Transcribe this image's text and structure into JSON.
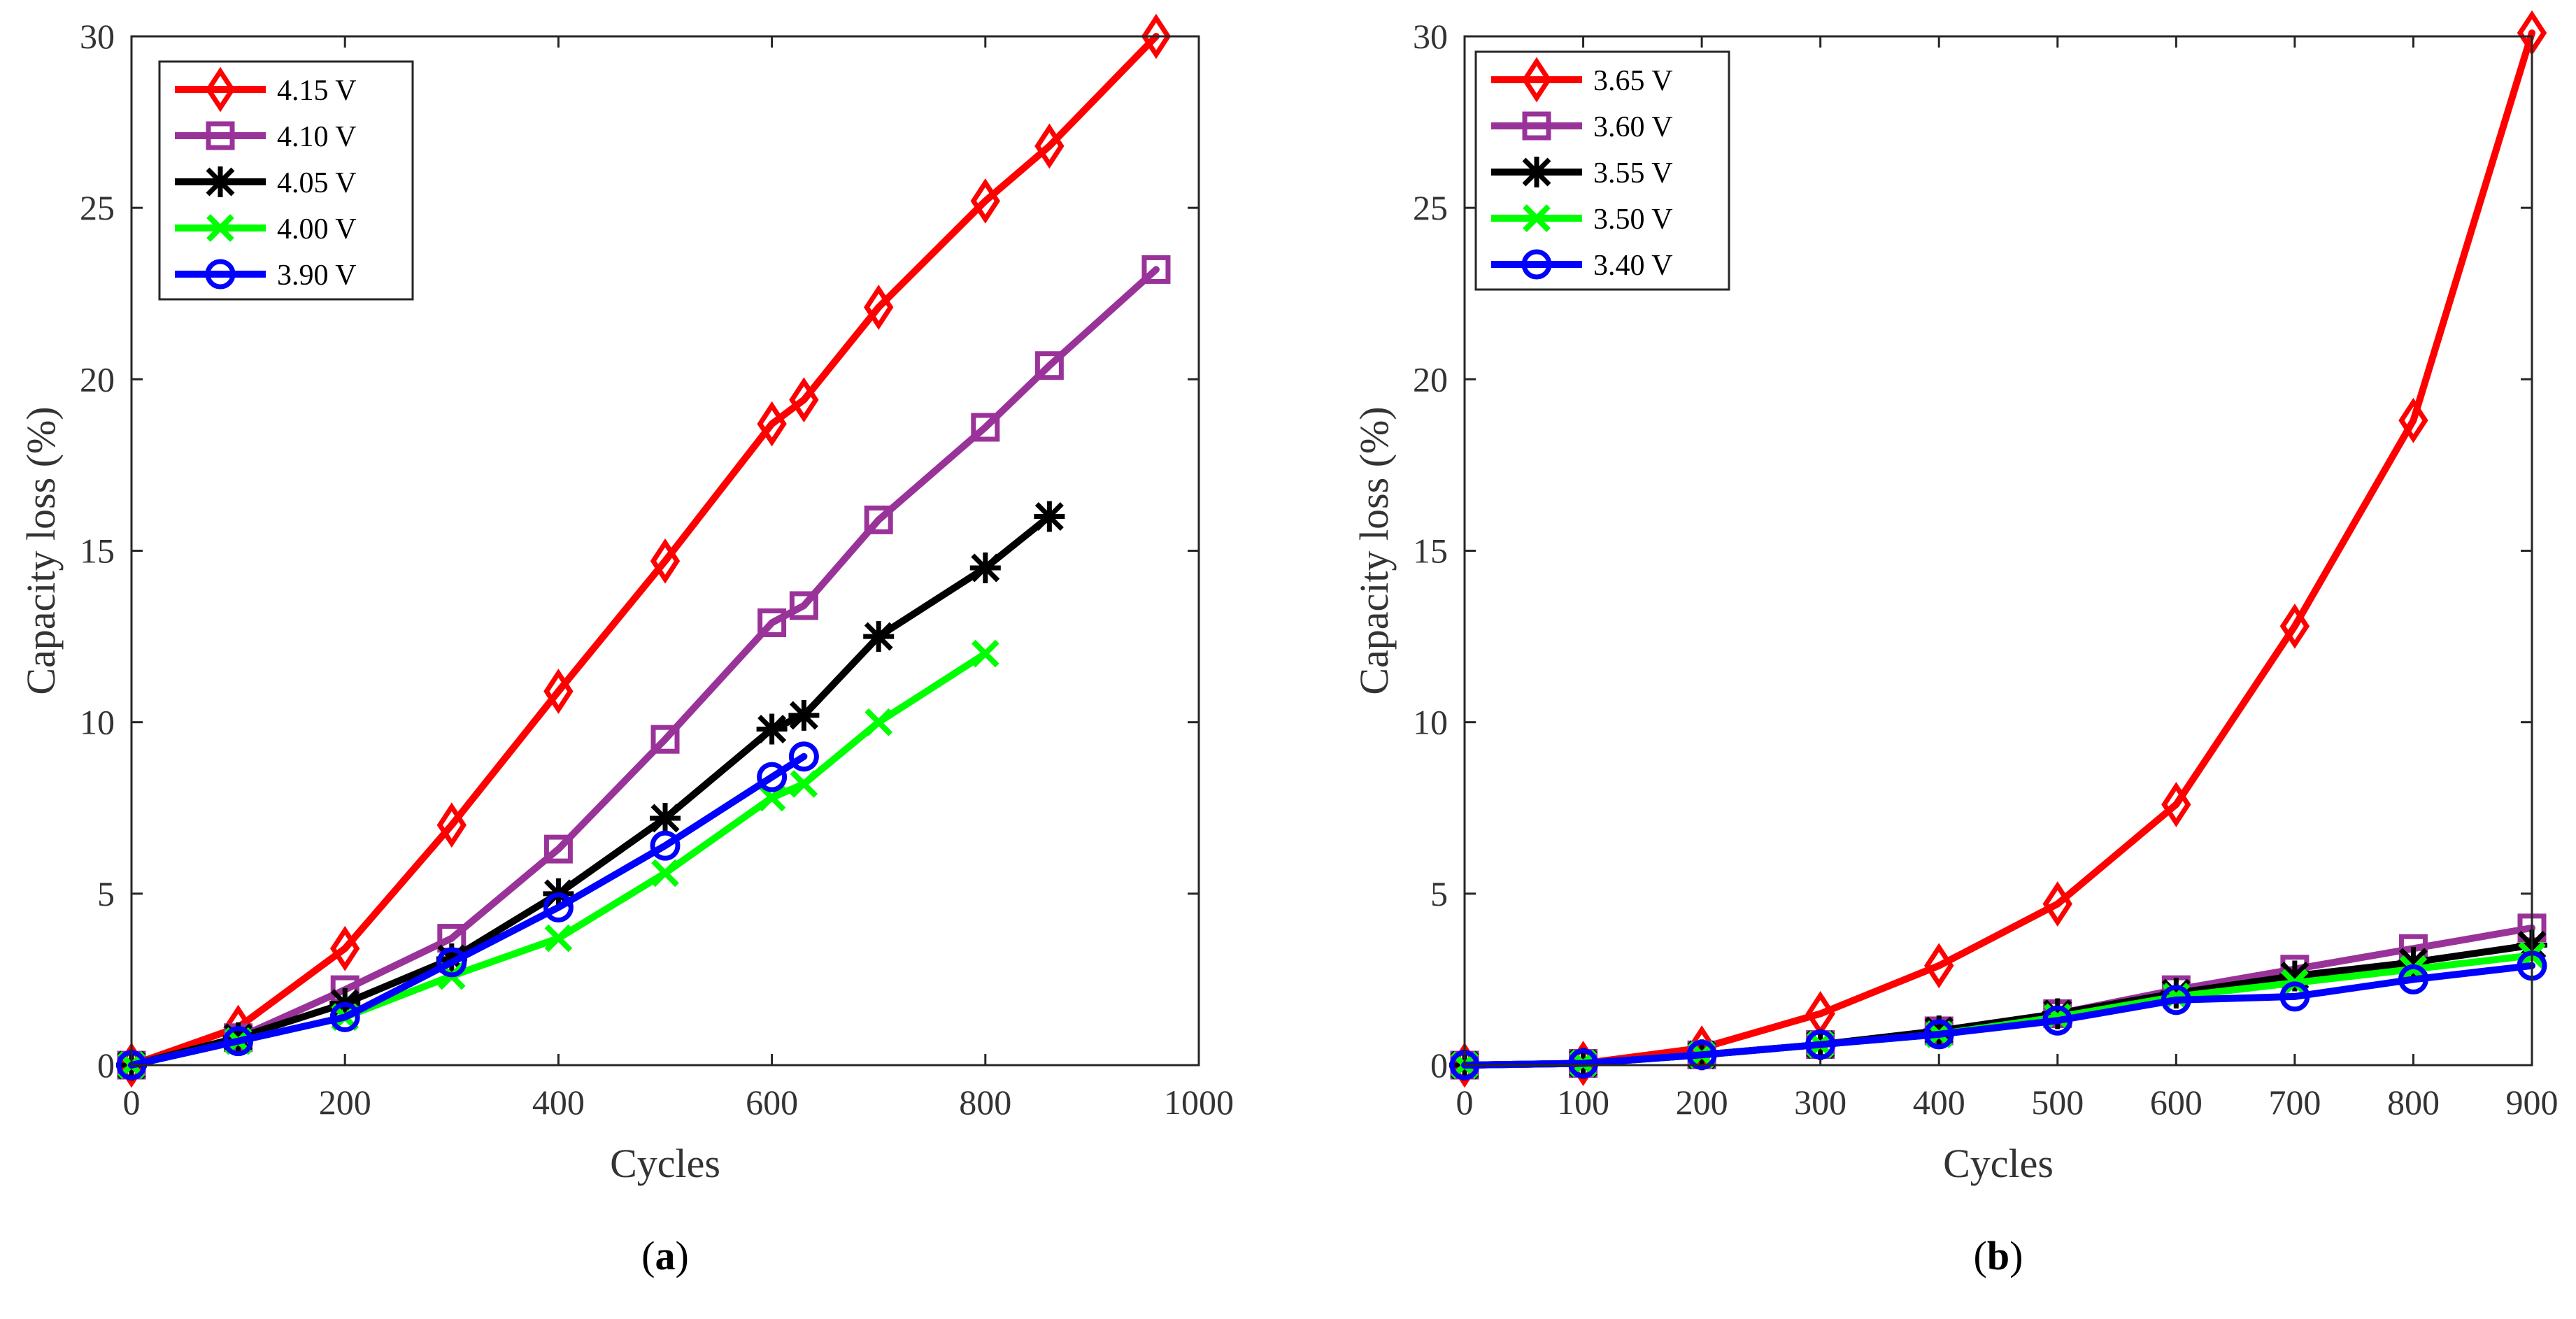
{
  "chart_data": [
    {
      "type": "line",
      "panel_label": "a",
      "xlabel": "Cycles",
      "ylabel": "Capacity loss (%)",
      "xlim": [
        0,
        1000
      ],
      "ylim": [
        0,
        30
      ],
      "xticks": [
        0,
        200,
        400,
        600,
        800,
        1000
      ],
      "yticks": [
        0,
        5,
        10,
        15,
        20,
        25,
        30
      ],
      "legend_position": "top-left",
      "series": [
        {
          "name": "4.15 V",
          "color": "#ff0000",
          "marker": "diamond",
          "x": [
            0,
            100,
            200,
            300,
            400,
            500,
            600,
            630,
            700,
            800,
            860,
            960
          ],
          "y": [
            0,
            1.1,
            3.4,
            7.0,
            10.9,
            14.7,
            18.7,
            19.4,
            22.1,
            25.2,
            26.8,
            30.0
          ]
        },
        {
          "name": "4.10 V",
          "color": "#993399",
          "marker": "square",
          "x": [
            0,
            100,
            200,
            300,
            400,
            500,
            600,
            630,
            700,
            800,
            860,
            960
          ],
          "y": [
            0,
            0.8,
            2.2,
            3.7,
            6.3,
            9.5,
            12.9,
            13.4,
            15.9,
            18.6,
            20.4,
            23.2
          ]
        },
        {
          "name": "4.05 V",
          "color": "#000000",
          "marker": "asterisk",
          "x": [
            0,
            100,
            200,
            300,
            400,
            500,
            600,
            630,
            700,
            800,
            860
          ],
          "y": [
            0,
            0.8,
            1.8,
            3.1,
            5.0,
            7.2,
            9.8,
            10.2,
            12.5,
            14.5,
            16.0
          ]
        },
        {
          "name": "4.00 V",
          "color": "#00ff00",
          "marker": "x",
          "x": [
            0,
            100,
            200,
            300,
            400,
            500,
            600,
            630,
            700,
            800
          ],
          "y": [
            0,
            0.7,
            1.4,
            2.6,
            3.7,
            5.6,
            7.8,
            8.2,
            10.0,
            12.0
          ]
        },
        {
          "name": "3.90 V",
          "color": "#0000ff",
          "marker": "circle",
          "x": [
            0,
            100,
            200,
            300,
            400,
            500,
            600,
            630
          ],
          "y": [
            0,
            0.7,
            1.4,
            3.0,
            4.6,
            6.4,
            8.4,
            9.0
          ]
        }
      ]
    },
    {
      "type": "line",
      "panel_label": "b",
      "xlabel": "Cycles",
      "ylabel": "Capacity loss (%)",
      "xlim": [
        0,
        900
      ],
      "ylim": [
        0,
        30
      ],
      "xticks": [
        0,
        100,
        200,
        300,
        400,
        500,
        600,
        700,
        800,
        900
      ],
      "yticks": [
        0,
        5,
        10,
        15,
        20,
        25,
        30
      ],
      "legend_position": "top-left",
      "series": [
        {
          "name": "3.65 V",
          "color": "#ff0000",
          "marker": "diamond",
          "x": [
            0,
            100,
            200,
            300,
            400,
            500,
            600,
            700,
            800,
            900
          ],
          "y": [
            0,
            0.05,
            0.5,
            1.5,
            2.9,
            4.7,
            7.6,
            12.8,
            18.8,
            30.1
          ]
        },
        {
          "name": "3.60 V",
          "color": "#993399",
          "marker": "square",
          "x": [
            0,
            100,
            200,
            300,
            400,
            500,
            600,
            700,
            800,
            900
          ],
          "y": [
            0,
            0.05,
            0.3,
            0.6,
            1.0,
            1.5,
            2.2,
            2.8,
            3.4,
            4.0
          ]
        },
        {
          "name": "3.55 V",
          "color": "#000000",
          "marker": "asterisk",
          "x": [
            0,
            100,
            200,
            300,
            400,
            500,
            600,
            700,
            800,
            900
          ],
          "y": [
            0,
            0.05,
            0.3,
            0.6,
            1.0,
            1.5,
            2.1,
            2.6,
            3.0,
            3.5
          ]
        },
        {
          "name": "3.50 V",
          "color": "#00ff00",
          "marker": "x",
          "x": [
            0,
            100,
            200,
            300,
            400,
            500,
            600,
            700,
            800,
            900
          ],
          "y": [
            0,
            0.05,
            0.3,
            0.6,
            0.9,
            1.4,
            2.0,
            2.4,
            2.8,
            3.2
          ]
        },
        {
          "name": "3.40 V",
          "color": "#0000ff",
          "marker": "circle",
          "x": [
            0,
            100,
            200,
            300,
            400,
            500,
            600,
            700,
            800,
            900
          ],
          "y": [
            0,
            0.05,
            0.3,
            0.6,
            0.9,
            1.3,
            1.9,
            2.0,
            2.5,
            2.9
          ]
        }
      ]
    }
  ]
}
